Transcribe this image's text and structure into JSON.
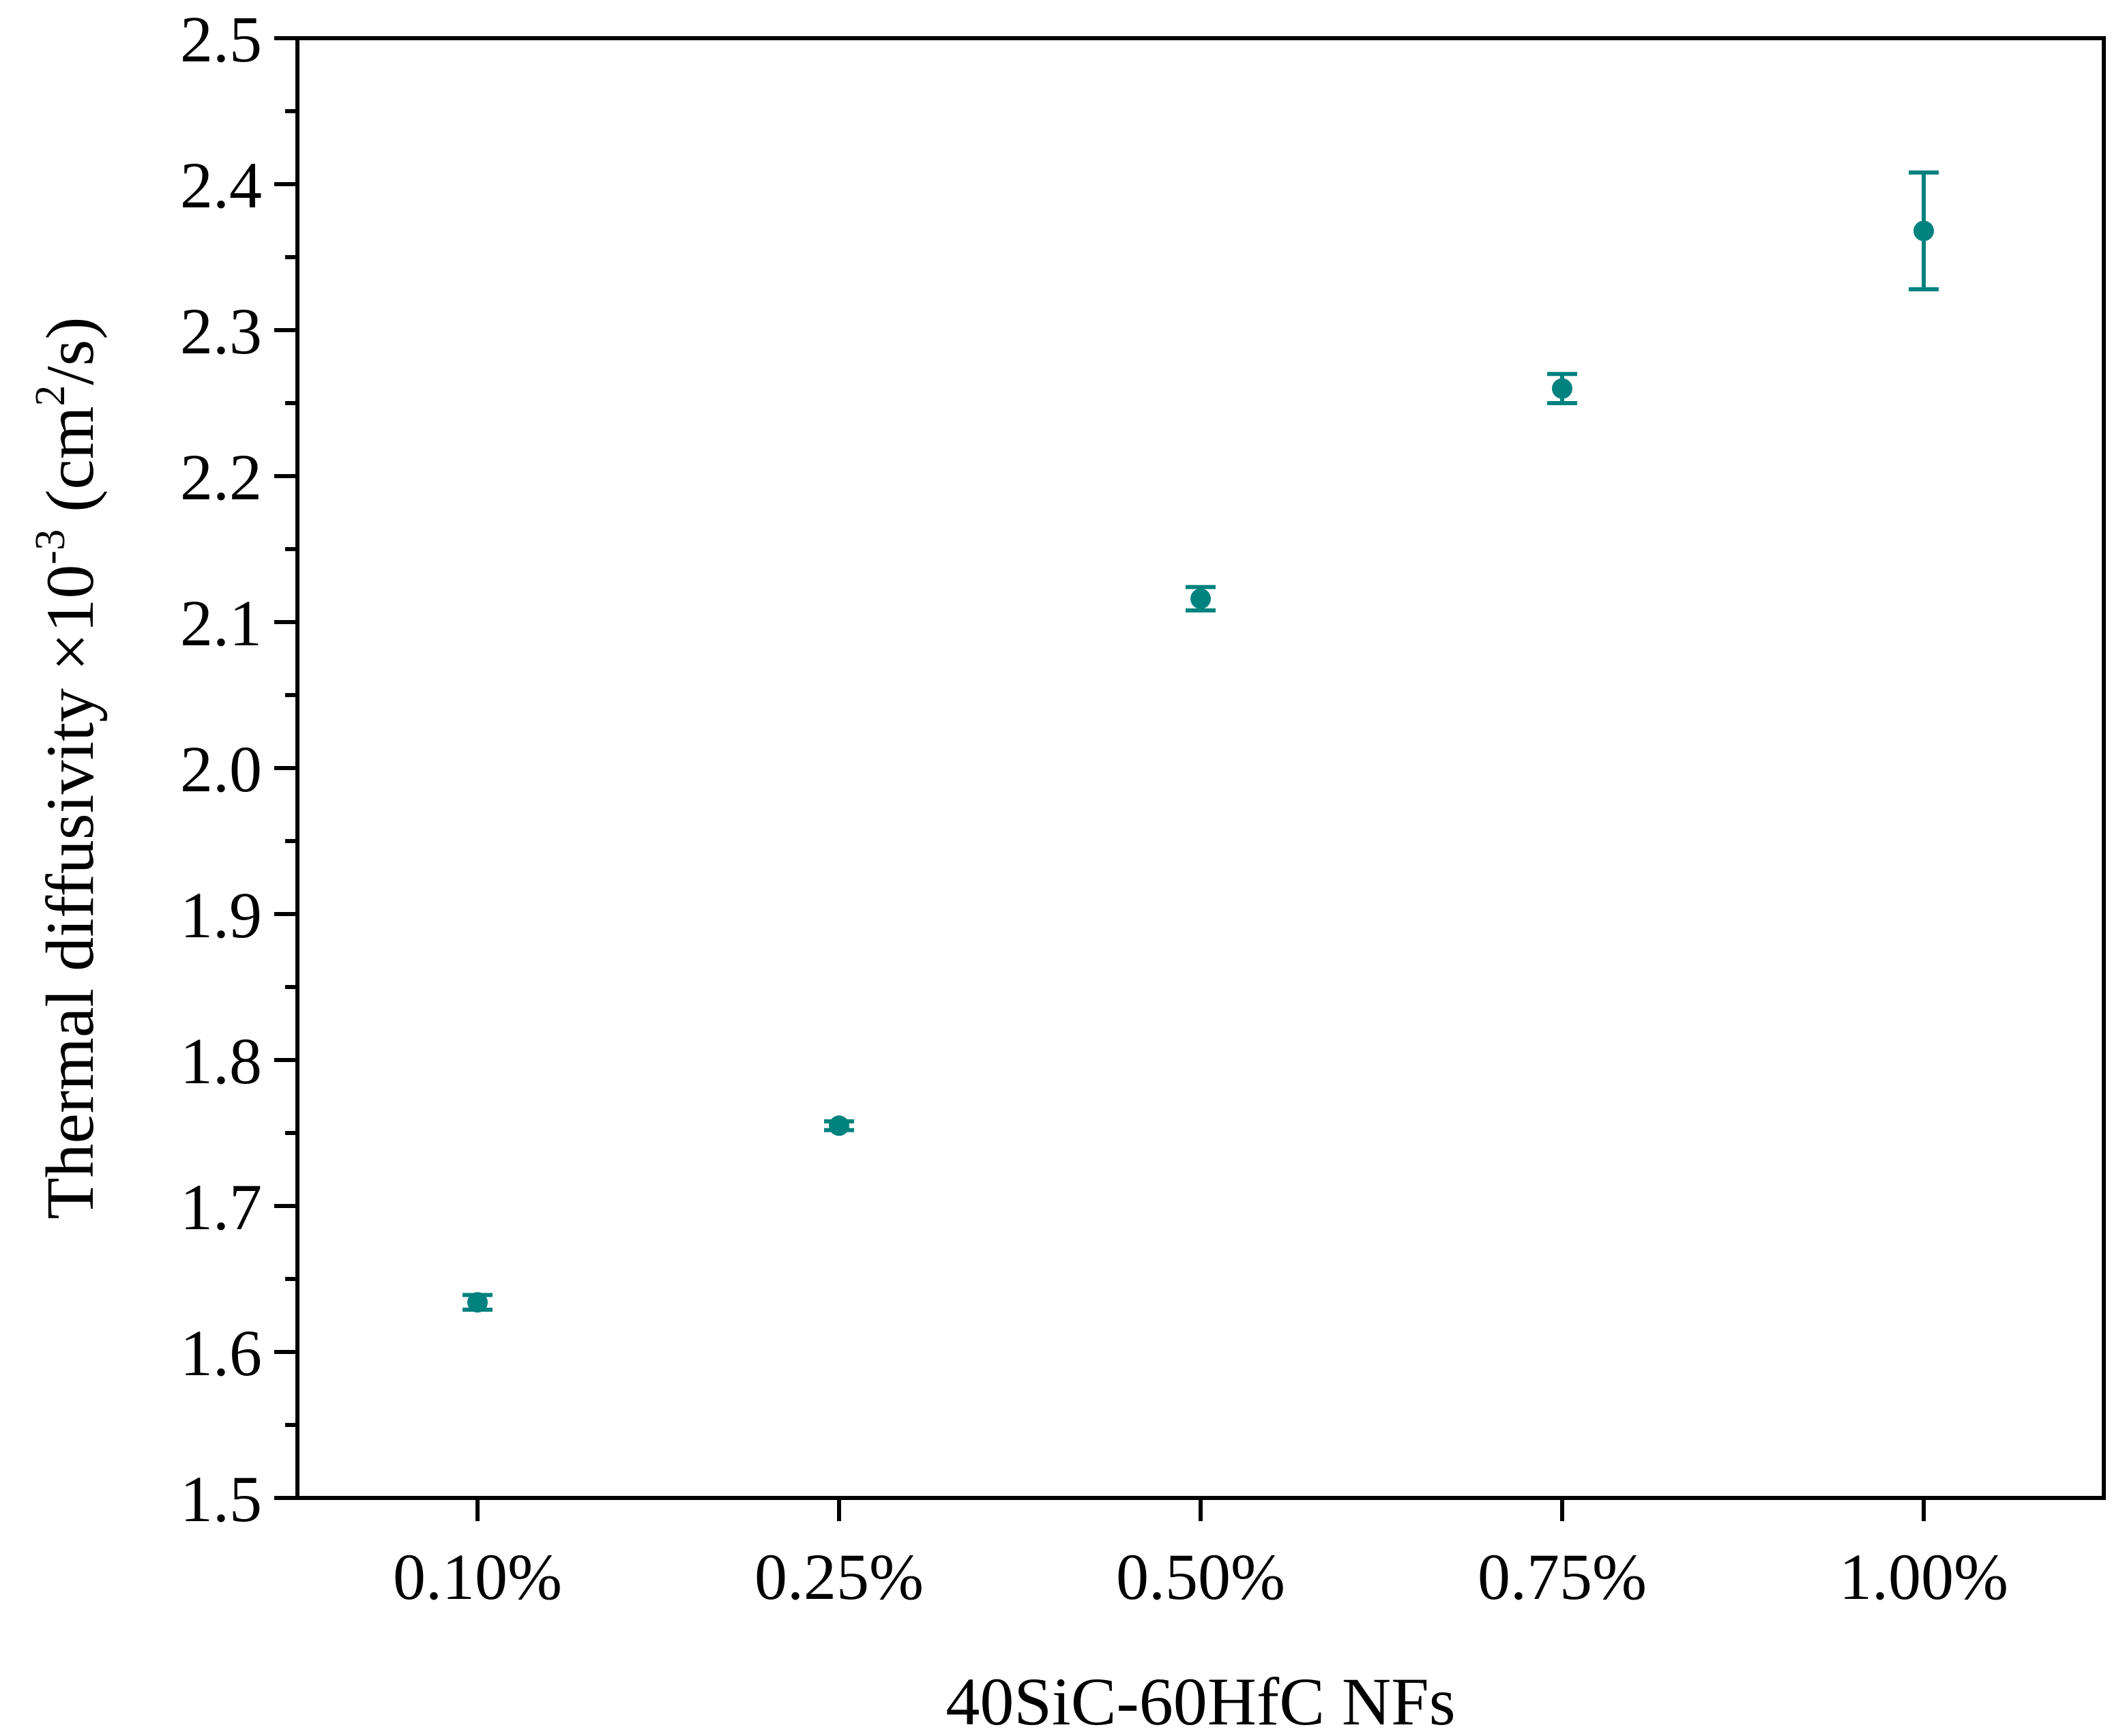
{
  "chart_data": {
    "type": "scatter",
    "title": "",
    "xlabel": "40SiC-60HfC NFs",
    "ylabel": {
      "prefix": "Thermal diffusivity ×10",
      "exp1": "-3",
      "mid": " (cm",
      "exp2": "2",
      "suffix": "/s)"
    },
    "categories": [
      "0.10%",
      "0.25%",
      "0.50%",
      "0.75%",
      "1.00%"
    ],
    "ylim": [
      1.5,
      2.5
    ],
    "yticks": [
      "1.5",
      "1.6",
      "1.7",
      "1.8",
      "1.9",
      "2.0",
      "2.1",
      "2.2",
      "2.3",
      "2.4",
      "2.5"
    ],
    "grid": false,
    "legend": "none",
    "series": [
      {
        "values": [
          1.634,
          1.755,
          2.116,
          2.26,
          2.368
        ],
        "errors": [
          0.005,
          0.003,
          0.008,
          0.01,
          0.04
        ]
      }
    ],
    "colors": {
      "marker": "#00827f",
      "axis": "#000000"
    }
  }
}
